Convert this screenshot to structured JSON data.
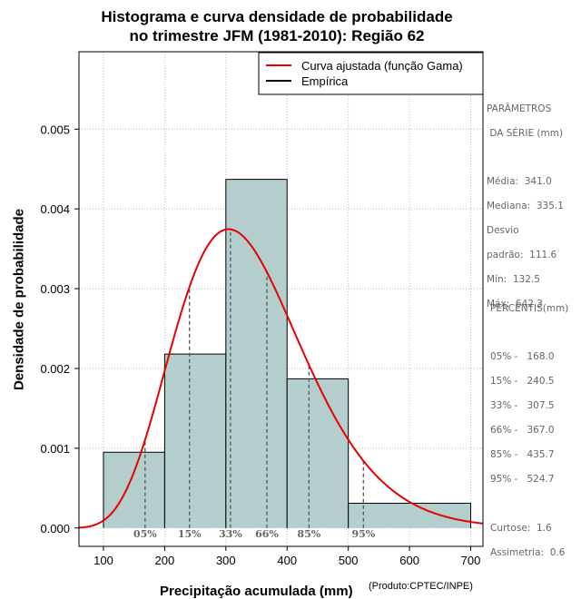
{
  "title": {
    "line1": "Histograma e curva densidade de probabilidade",
    "line2": "no trimestre JFM (1981-2010): Região 62"
  },
  "colors": {
    "bar_fill": "#b3cecd",
    "curve": "#e60000",
    "grid": "#bbbbbb",
    "text_gray": "#666666"
  },
  "chart_data": {
    "type": "bar",
    "title": "Histograma e curva densidade de probabilidade no trimestre JFM (1981-2010): Região 62",
    "xlabel": "Precipitação acumulada (mm)",
    "ylabel": "Densidade de probabilidade",
    "xlim": [
      60,
      720
    ],
    "ylim": [
      -0.00023,
      0.00597
    ],
    "x_ticks": [
      100,
      200,
      300,
      400,
      500,
      600,
      700
    ],
    "x_tick_labels": [
      "100",
      "200",
      "300",
      "400",
      "500",
      "600",
      "700"
    ],
    "y_ticks": [
      0.0,
      0.001,
      0.002,
      0.003,
      0.004,
      0.005
    ],
    "y_tick_labels": [
      "0.000",
      "0.001",
      "0.002",
      "0.003",
      "0.004",
      "0.005"
    ],
    "grid": true,
    "histogram": [
      {
        "x0": 100,
        "x1": 200,
        "density": 0.00095
      },
      {
        "x0": 200,
        "x1": 300,
        "density": 0.00218
      },
      {
        "x0": 300,
        "x1": 400,
        "density": 0.00437
      },
      {
        "x0": 400,
        "x1": 500,
        "density": 0.00187
      },
      {
        "x0": 500,
        "x1": 700,
        "density": 0.00031
      }
    ],
    "gamma_fit": {
      "mean": 341.0,
      "sd": 111.6
    },
    "percentile_lines": [
      {
        "label": "05%",
        "x": 168.0
      },
      {
        "label": "15%",
        "x": 240.5
      },
      {
        "label": "33%",
        "x": 307.5
      },
      {
        "label": "66%",
        "x": 367.0
      },
      {
        "label": "85%",
        "x": 435.7
      },
      {
        "label": "95%",
        "x": 524.7
      }
    ],
    "legend": [
      {
        "label": "Curva ajustada (função Gama)",
        "color": "#e60000"
      },
      {
        "label": "Empírica",
        "color": "#000000"
      }
    ],
    "legend_position": "top-right"
  },
  "credit": "(Produto:CPTEC/INPE)",
  "params": {
    "heading1": "PARÂMETROS",
    "heading2": " DA SÉRIE (mm)",
    "lines": [
      "Média:  341.0",
      "Mediana:  335.1",
      "Desvio",
      "padrão:  111.6",
      "Mín:  132.5",
      "Máx:  642.3"
    ]
  },
  "percentis": {
    "heading": "PERCENTIS(mm)",
    "lines": [
      "05% -   168.0",
      "15% -   240.5",
      "33% -   307.5",
      "66% -   367.0",
      "85% -   435.7",
      "95% -   524.7"
    ],
    "stats": [
      "Curtose:  1.6",
      "Assimetria:  0.6"
    ]
  }
}
